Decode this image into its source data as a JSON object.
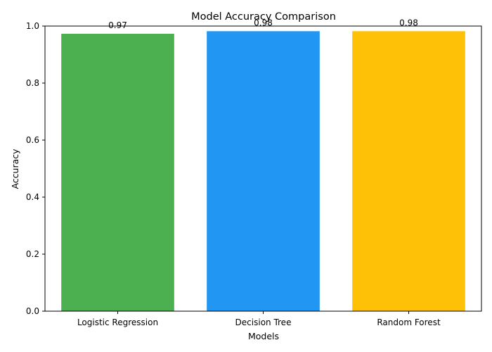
{
  "chart_data": {
    "type": "bar",
    "title": "Model Accuracy Comparison",
    "xlabel": "Models",
    "ylabel": "Accuracy",
    "categories": [
      "Logistic Regression",
      "Decision Tree",
      "Random Forest"
    ],
    "values": [
      0.973,
      0.982,
      0.982
    ],
    "data_labels": [
      "0.97",
      "0.98",
      "0.98"
    ],
    "colors": [
      "#4caf50",
      "#2196f3",
      "#ffc107"
    ],
    "ylim": [
      0,
      1
    ],
    "yticks": [
      0.0,
      0.2,
      0.4,
      0.6,
      0.8,
      1.0
    ],
    "ytick_labels": [
      "0.0",
      "0.2",
      "0.4",
      "0.6",
      "0.8",
      "1.0"
    ],
    "grid": false,
    "legend": "none"
  }
}
